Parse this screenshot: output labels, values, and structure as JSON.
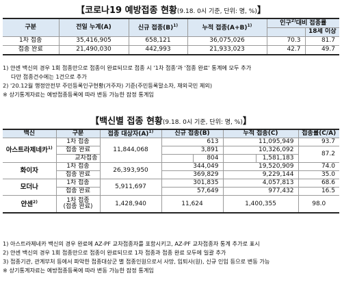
{
  "title1": {
    "main": "【코로나19 예방접종 현황",
    "sub": "(9.18. 0시 기준, 단위: 명, %)",
    "end": "】"
  },
  "table1": {
    "headers": {
      "category": "구분",
      "prev_total": "전일 누계(A)",
      "new": "신규 접종(B)",
      "new_sup": "1)",
      "cumulative": "누적 접종(A+B)",
      "cumulative_sup": "1)",
      "pop_ratio_pre": "인구",
      "pop_ratio_sup": "2)",
      "pop_ratio_post": "대비 접종률",
      "age18": "18세 이상"
    },
    "rows": [
      {
        "category": "1차 접종",
        "prev_total": "35,416,905",
        "new": "658,121",
        "cumulative": "36,075,026",
        "pop": "70.3",
        "age18": "81.7"
      },
      {
        "category": "접종 완료",
        "prev_total": "21,490,030",
        "new": "442,993",
        "cumulative": "21,933,023",
        "pop": "42.7",
        "age18": "49.7"
      }
    ]
  },
  "notes1": [
    "1) 얀센 백신의 경우 1회 접종만으로 접종이 완료되므로 접종 시 '1차 접종'과 '접종 완료' 통계에 모두 추가",
    "   다만 접종건수에는 1건으로 추가",
    "2) '20.12월 행정안전부 주민등록인구현황(거주자) 기준(주민등록말소자, 재외국민 제외)",
    "※ 상기통계자료는 예방접종등록에 따라 변동 가능한 잠정 통계임"
  ],
  "title2": {
    "main": "【백신별 접종 현황",
    "sub": "(9.18. 0시 기준, 단위: 명, %)",
    "end": "】"
  },
  "table2": {
    "headers": {
      "vaccine": "백신",
      "category": "구분",
      "target": "접종 대상자(A)",
      "target_sup": "1)",
      "new": "신규 접종(B)",
      "cumulative": "누적 접종(C)",
      "rate": "접종률(C/A)"
    },
    "vaccines": [
      {
        "name": "아스트라제네카",
        "sup": "1)",
        "target": "11,844,068",
        "rows": [
          {
            "category": "1차 접종",
            "new": "613",
            "cumulative": "11,095,949",
            "rate": "93.7"
          },
          {
            "category": "접종 완료",
            "new": "3,891",
            "cumulative": "10,326,092",
            "rate": "87.2"
          },
          {
            "category": "교차접종",
            "new": "804",
            "cumulative": "1,581,183"
          }
        ]
      },
      {
        "name": "화이자",
        "target": "26,393,950",
        "rows": [
          {
            "category": "1차 접종",
            "new": "344,049",
            "cumulative": "19,520,909",
            "rate": "74.0"
          },
          {
            "category": "접종 완료",
            "new": "369,829",
            "cumulative": "9,229,144",
            "rate": "35.0"
          }
        ]
      },
      {
        "name": "모더나",
        "target": "5,911,697",
        "rows": [
          {
            "category": "1차 접종",
            "new": "301,835",
            "cumulative": "4,057,813",
            "rate": "68.6"
          },
          {
            "category": "접종 완료",
            "new": "57,649",
            "cumulative": "977,432",
            "rate": "16.5"
          }
        ]
      },
      {
        "name": "얀센",
        "sup": "2)",
        "target": "1,428,940",
        "rows": [
          {
            "category_line1": "1차 접종",
            "category_line2": "(접종 완료)",
            "new": "11,624",
            "cumulative": "1,400,355",
            "rate": "98.0"
          }
        ]
      }
    ]
  },
  "notes2": [
    "1) 아스트라제네카 백신의 경우 완료에 AZ-PF 교차접종자를 포함시키고, AZ-PF 교차접종자 통계 추가로 표시",
    "2) 얀센 백신의 경우 1회 접종만으로 접종이 완료되므로 1차 접종과 접종 완료 모두에 일괄 추가",
    "3) 접종기관, 관계부처 등에서 파악한 접종대상군 별 접종인원으로서 사망, 입퇴사(원), 신규 인입 등으로 변동 가능",
    "※ 상기통계자료는 예방접종등록에 따라 변동 가능한 잠정 통계임"
  ]
}
